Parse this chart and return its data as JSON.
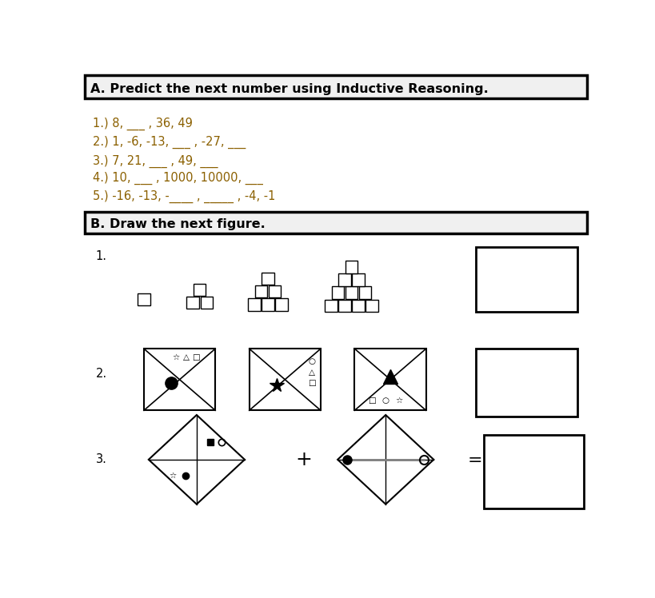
{
  "title_A": "A. Predict the next number using Inductive Reasoning.",
  "title_B": "B. Draw the next figure.",
  "lines": [
    "1.) 8, ___ , 36, 49",
    "2.) 1, -6, -13, ___ , -27, ___",
    "3.) 7, 21, ___ , 49, ___",
    "4.) 10, ___ , 1000, 10000, ___",
    "5.) -16, -13, -____ , _____ , -4, -1"
  ],
  "bg_color": "#ffffff",
  "text_color": "#000000",
  "label_color": "#8B6000",
  "border_color": "#000000"
}
